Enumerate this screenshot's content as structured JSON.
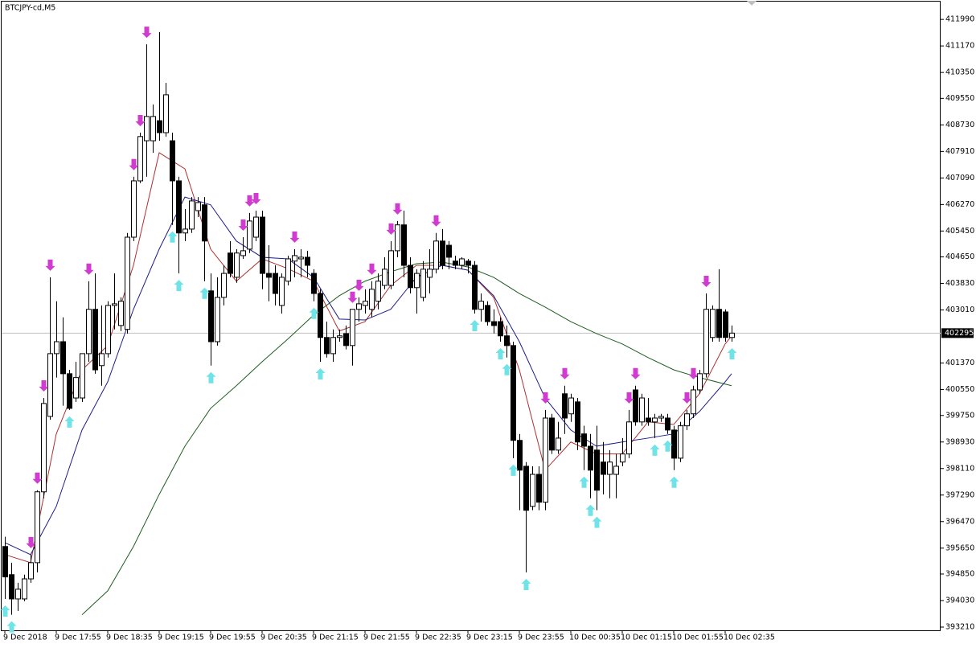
{
  "chart_data": {
    "type": "candlestick",
    "title": "BTCJPY-cd,M5",
    "categories": [
      "9 Dec 2018",
      null,
      null,
      null,
      null,
      null,
      null,
      null,
      "9 Dec 17:55",
      null,
      null,
      null,
      null,
      null,
      null,
      null,
      "9 Dec 18:35",
      null,
      null,
      null,
      null,
      null,
      null,
      null,
      "9 Dec 19:15",
      null,
      null,
      null,
      null,
      null,
      null,
      null,
      "9 Dec 19:55",
      null,
      null,
      null,
      null,
      null,
      null,
      null,
      "9 Dec 20:35",
      null,
      null,
      null,
      null,
      null,
      null,
      null,
      "9 Dec 21:15",
      null,
      null,
      null,
      null,
      null,
      null,
      null,
      "9 Dec 21:55",
      null,
      null,
      null,
      null,
      null,
      null,
      null,
      "9 Dec 22:35",
      null,
      null,
      null,
      null,
      null,
      null,
      null,
      "9 Dec 23:15",
      null,
      null,
      null,
      null,
      null,
      null,
      null,
      "9 Dec 23:55",
      null,
      null,
      null,
      null,
      null,
      null,
      null,
      "10 Dec 00:35",
      null,
      null,
      null,
      null,
      null,
      null,
      null,
      "10 Dec 01:15",
      null,
      null,
      null,
      null,
      null,
      null,
      null,
      "10 Dec 01:55",
      null,
      null,
      null,
      null,
      null,
      null,
      null,
      "10 Dec 02:35",
      null
    ],
    "open": [
      395700,
      394830,
      394080,
      394080,
      394700,
      395200,
      397390,
      399720,
      401660,
      402030,
      401040,
      400290,
      400290,
      401660,
      403030,
      401290,
      401660,
      403150,
      402530,
      402410,
      405260,
      407000,
      408240,
      408240,
      408860,
      408490,
      408240,
      407000,
      405390,
      405510,
      406080,
      406260,
      403600,
      402030,
      403400,
      404770,
      404020,
      404690,
      404890,
      405260,
      405880,
      404140,
      404140,
      403150,
      403900,
      404520,
      404590,
      404640,
      404140,
      403520,
      402160,
      401660,
      402160,
      402280,
      401910,
      403030,
      403150,
      403030,
      403280,
      403770,
      403770,
      404840,
      405640,
      404390,
      403700,
      403400,
      404020,
      404270,
      405140,
      405010,
      404520,
      404390,
      404520,
      404390,
      403030,
      403150,
      402650,
      402650,
      402210,
      401910,
      398980,
      398180,
      396940,
      397930,
      397070,
      399670,
      398680,
      400420,
      399800,
      400170,
      399180,
      398800,
      398680,
      398310,
      397930,
      397930,
      398310,
      398560,
      400540,
      399550,
      399670,
      399550,
      399670,
      399670,
      399300,
      398430,
      399430,
      399800,
      400540,
      401040,
      402160,
      403030,
      402950,
      402160
    ],
    "high": [
      396000,
      395200,
      394580,
      394830,
      395450,
      397440,
      400290,
      404020,
      403280,
      402780,
      401160,
      401410,
      401660,
      403900,
      404140,
      403150,
      403280,
      404140,
      403400,
      405390,
      407130,
      408490,
      411220,
      409360,
      411600,
      410030,
      408490,
      407130,
      406130,
      406500,
      406500,
      406500,
      404140,
      404020,
      404390,
      405140,
      404890,
      405260,
      406010,
      406080,
      406080,
      405010,
      404390,
      404140,
      404690,
      404890,
      404890,
      404840,
      404270,
      403650,
      402650,
      402410,
      402410,
      402530,
      403030,
      403400,
      403650,
      403900,
      404140,
      404640,
      405140,
      405760,
      406080,
      404640,
      404270,
      404520,
      404890,
      405390,
      405510,
      405140,
      404690,
      404640,
      404590,
      404520,
      403520,
      403280,
      403030,
      402780,
      402530,
      402030,
      399180,
      398310,
      398180,
      398180,
      399920,
      399800,
      399550,
      400670,
      400420,
      400290,
      399430,
      399180,
      399430,
      398930,
      398680,
      398560,
      399050,
      399920,
      400670,
      400420,
      400290,
      399800,
      399800,
      399800,
      399430,
      399550,
      399920,
      400670,
      401160,
      403520,
      403150,
      404270,
      403030,
      402530
    ],
    "low": [
      394080,
      393590,
      393710,
      394010,
      394580,
      394900,
      397190,
      399620,
      400920,
      400050,
      399920,
      400170,
      400170,
      401410,
      401040,
      400670,
      401540,
      402410,
      402360,
      402280,
      405140,
      406930,
      407130,
      407870,
      408240,
      408370,
      405640,
      404140,
      405140,
      405390,
      405880,
      403900,
      401290,
      401910,
      403150,
      404020,
      403850,
      404590,
      404770,
      405140,
      403650,
      403280,
      403150,
      402900,
      403770,
      404020,
      404020,
      404020,
      403280,
      401410,
      401540,
      401410,
      402030,
      401790,
      401290,
      402650,
      402900,
      402780,
      403030,
      403650,
      403650,
      404640,
      404020,
      403520,
      402900,
      403280,
      403520,
      404140,
      404270,
      404270,
      404270,
      404270,
      404140,
      402900,
      402650,
      402530,
      402280,
      402030,
      401540,
      398430,
      396820,
      394900,
      396820,
      396820,
      396820,
      398560,
      398560,
      399180,
      399550,
      398680,
      398060,
      397190,
      396820,
      397310,
      397190,
      397190,
      398180,
      398430,
      399430,
      399430,
      399430,
      399050,
      399550,
      399180,
      398060,
      398310,
      399300,
      399670,
      400420,
      400920,
      402030,
      402030,
      402030,
      402030
    ],
    "close": [
      394760,
      394080,
      394380,
      394700,
      395200,
      397390,
      400120,
      401660,
      402030,
      401040,
      399970,
      400920,
      401660,
      403030,
      401160,
      401660,
      403150,
      403200,
      403280,
      405260,
      407000,
      408370,
      408990,
      408990,
      408490,
      409660,
      407000,
      405390,
      405510,
      406380,
      406330,
      405140,
      402030,
      403400,
      404140,
      404140,
      404770,
      404840,
      405760,
      405880,
      404140,
      404020,
      403520,
      404020,
      404590,
      404690,
      404640,
      404390,
      403520,
      402160,
      401660,
      402160,
      402210,
      401910,
      403030,
      403200,
      403280,
      403650,
      403900,
      404270,
      404840,
      405640,
      404390,
      403700,
      404140,
      404270,
      404270,
      405140,
      404390,
      404640,
      404390,
      404590,
      404390,
      403030,
      403280,
      402650,
      402530,
      402210,
      401910,
      398980,
      398060,
      396820,
      397930,
      397070,
      399670,
      398680,
      399050,
      399670,
      400290,
      398930,
      398800,
      398060,
      397440,
      397930,
      398310,
      398180,
      398560,
      399550,
      399550,
      400290,
      399550,
      399670,
      399720,
      399300,
      398430,
      399430,
      399800,
      400540,
      401040,
      403030,
      403030,
      402160,
      402160,
      402295
    ],
    "bull_color": "#ffffff",
    "bear_color": "#000000",
    "moving_averages": [
      {
        "color": "#b03030",
        "x": [
          0,
          4,
          8,
          12,
          16,
          20,
          24,
          28,
          32,
          36,
          40,
          44,
          48,
          52,
          56,
          60,
          64,
          68,
          72,
          76,
          80,
          84,
          88,
          92,
          96,
          100,
          104,
          108,
          112,
          113
        ],
        "values": [
          395450,
          395200,
          399180,
          401160,
          401910,
          404390,
          407870,
          407370,
          404890,
          403900,
          404590,
          404290,
          403900,
          402360,
          402650,
          403770,
          404390,
          404390,
          404240,
          403400,
          401160,
          398060,
          398930,
          398560,
          398560,
          399550,
          399470,
          400420,
          401960,
          402210
        ]
      },
      {
        "color": "#1c1c8a",
        "x": [
          0,
          4,
          8,
          12,
          16,
          20,
          24,
          28,
          32,
          36,
          40,
          44,
          48,
          52,
          56,
          60,
          64,
          68,
          72,
          76,
          80,
          84,
          88,
          92,
          96,
          100,
          104,
          108,
          112,
          113
        ],
        "values": [
          395820,
          395450,
          396940,
          399300,
          400790,
          403030,
          404890,
          406500,
          406260,
          405140,
          404640,
          404590,
          404020,
          402730,
          402700,
          403030,
          404020,
          404390,
          404240,
          403450,
          402030,
          400290,
          399300,
          398800,
          398930,
          399050,
          399180,
          399870,
          400790,
          401040
        ]
      },
      {
        "color": "#1d5e1d",
        "x": [
          12,
          16,
          20,
          24,
          28,
          32,
          36,
          40,
          44,
          48,
          52,
          56,
          60,
          64,
          68,
          72,
          76,
          80,
          84,
          88,
          92,
          96,
          100,
          104,
          108,
          112,
          113
        ],
        "values": [
          393590,
          394330,
          395700,
          397310,
          398800,
          399970,
          400670,
          401410,
          402110,
          402850,
          403450,
          403900,
          404190,
          404440,
          404490,
          404340,
          404020,
          403520,
          403100,
          402650,
          402280,
          401960,
          401540,
          401160,
          400920,
          400720,
          400670
        ]
      }
    ],
    "sell_arrows": {
      "color": "#d23bd2",
      "x": [
        4,
        5,
        6,
        7,
        13,
        20,
        21,
        22,
        37,
        38,
        39,
        45,
        54,
        55,
        57,
        60,
        61,
        67,
        84,
        87,
        97,
        98,
        106,
        107,
        109
      ]
    },
    "buy_arrows": {
      "color": "#6fe3e8",
      "x": [
        0,
        1,
        10,
        26,
        27,
        31,
        32,
        48,
        49,
        73,
        77,
        78,
        79,
        81,
        90,
        91,
        92,
        101,
        103,
        104,
        113
      ]
    },
    "ylim": [
      393110,
      412540
    ],
    "yticks": [
      411990,
      411170,
      410350,
      409550,
      408730,
      407910,
      407090,
      406270,
      405450,
      404650,
      403830,
      403010,
      401370,
      400550,
      399750,
      398930,
      398110,
      397290,
      396470,
      395650,
      394850,
      394030,
      393210
    ]
  }
}
